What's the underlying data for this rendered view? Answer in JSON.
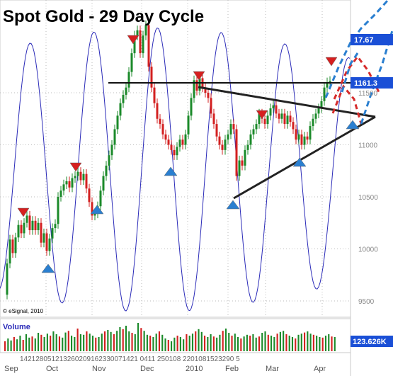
{
  "chart_data": {
    "type": "candlestick",
    "title": "Spot Gold - 29 Day Cycle",
    "source_note": "© eSignal, 2010",
    "price_axis": {
      "ticks": [
        "11500",
        "11000",
        "10500",
        "10000",
        "9500"
      ],
      "markers": [
        {
          "label": "17.67",
          "color": "#1a4fd6"
        },
        {
          "label": "1161.3",
          "color": "#1a4fd6"
        }
      ]
    },
    "x_axis": {
      "day_ticks": "1421 28 05 12 13 26 02 09 16 23 30 07 14 21 04 11 25 01 08 22 01 08 15 23 29 05",
      "day_ticks_display": "142128051213260209162330071421 0411 250108 2201081523290 5",
      "months": [
        "Sep",
        "Oct",
        "Nov",
        "Dec",
        "2010",
        "Feb",
        "Mar",
        "Apr"
      ]
    },
    "price_path": [
      [
        0,
        9560
      ],
      [
        4,
        9860
      ],
      [
        8,
        10090
      ],
      [
        12,
        9960
      ],
      [
        16,
        10110
      ],
      [
        20,
        10230
      ],
      [
        24,
        10150
      ],
      [
        28,
        10250
      ],
      [
        32,
        10320
      ],
      [
        36,
        10180
      ],
      [
        40,
        10270
      ],
      [
        44,
        10180
      ],
      [
        48,
        10250
      ],
      [
        52,
        10060
      ],
      [
        56,
        10150
      ],
      [
        60,
        9980
      ],
      [
        64,
        10100
      ],
      [
        68,
        10200
      ],
      [
        72,
        10240
      ],
      [
        76,
        10500
      ],
      [
        80,
        10560
      ],
      [
        84,
        10620
      ],
      [
        88,
        10650
      ],
      [
        92,
        10590
      ],
      [
        96,
        10680
      ],
      [
        100,
        10700
      ],
      [
        104,
        10740
      ],
      [
        108,
        10660
      ],
      [
        112,
        10720
      ],
      [
        116,
        10580
      ],
      [
        120,
        10450
      ],
      [
        124,
        10320
      ],
      [
        128,
        10340
      ],
      [
        132,
        10410
      ],
      [
        136,
        10560
      ],
      [
        140,
        10700
      ],
      [
        144,
        10800
      ],
      [
        148,
        10900
      ],
      [
        152,
        11000
      ],
      [
        156,
        11150
      ],
      [
        160,
        11280
      ],
      [
        164,
        11400
      ],
      [
        168,
        11480
      ],
      [
        172,
        11550
      ],
      [
        176,
        11700
      ],
      [
        180,
        11880
      ],
      [
        184,
        12050
      ],
      [
        188,
        12100
      ],
      [
        192,
        11880
      ],
      [
        196,
        12050
      ],
      [
        200,
        12150
      ],
      [
        204,
        11750
      ],
      [
        208,
        11550
      ],
      [
        212,
        11400
      ],
      [
        216,
        11250
      ],
      [
        220,
        11200
      ],
      [
        224,
        11100
      ],
      [
        228,
        11050
      ],
      [
        232,
        11000
      ],
      [
        236,
        10950
      ],
      [
        240,
        10900
      ],
      [
        244,
        10980
      ],
      [
        248,
        11050
      ],
      [
        252,
        11000
      ],
      [
        256,
        11100
      ],
      [
        260,
        11280
      ],
      [
        264,
        11450
      ],
      [
        268,
        11620
      ],
      [
        272,
        11520
      ],
      [
        276,
        11640
      ],
      [
        280,
        11550
      ],
      [
        284,
        11500
      ],
      [
        288,
        11450
      ],
      [
        292,
        11300
      ],
      [
        296,
        11200
      ],
      [
        300,
        11080
      ],
      [
        304,
        11000
      ],
      [
        308,
        10950
      ],
      [
        312,
        11050
      ],
      [
        316,
        11100
      ],
      [
        320,
        11200
      ],
      [
        324,
        11150
      ],
      [
        328,
        10700
      ],
      [
        332,
        10850
      ],
      [
        336,
        10800
      ],
      [
        340,
        10950
      ],
      [
        344,
        11000
      ],
      [
        348,
        11100
      ],
      [
        352,
        11150
      ],
      [
        356,
        11200
      ],
      [
        360,
        11300
      ],
      [
        364,
        11250
      ],
      [
        368,
        11200
      ],
      [
        372,
        11280
      ],
      [
        376,
        11350
      ],
      [
        380,
        11380
      ],
      [
        384,
        11300
      ],
      [
        388,
        11250
      ],
      [
        392,
        11300
      ],
      [
        396,
        11200
      ],
      [
        400,
        11280
      ],
      [
        404,
        11220
      ],
      [
        408,
        11150
      ],
      [
        412,
        11050
      ],
      [
        416,
        11100
      ],
      [
        420,
        11000
      ],
      [
        424,
        11080
      ],
      [
        428,
        11050
      ],
      [
        432,
        11180
      ],
      [
        436,
        11250
      ],
      [
        440,
        11300
      ],
      [
        444,
        11350
      ],
      [
        448,
        11420
      ],
      [
        452,
        11550
      ],
      [
        456,
        11600
      ],
      [
        460,
        11613
      ]
    ],
    "volume_label": "Volume",
    "volume_value": "123.626K",
    "volume": [
      0.35,
      0.45,
      0.38,
      0.5,
      0.42,
      0.55,
      0.4,
      0.6,
      0.48,
      0.52,
      0.45,
      0.65,
      0.58,
      0.5,
      0.62,
      0.55,
      0.7,
      0.6,
      0.52,
      0.48,
      0.66,
      0.72,
      0.55,
      0.5,
      0.8,
      0.6,
      0.58,
      0.7,
      0.62,
      0.55,
      0.48,
      0.5,
      0.62,
      0.7,
      0.75,
      0.68,
      0.6,
      0.72,
      0.85,
      0.78,
      0.9,
      0.7,
      0.65,
      0.6,
      1.0,
      0.82,
      0.72,
      0.58,
      0.55,
      0.5,
      0.62,
      0.7,
      0.58,
      0.45,
      0.4,
      0.35,
      0.48,
      0.55,
      0.5,
      0.42,
      0.6,
      0.55,
      0.62,
      0.7,
      0.78,
      0.68,
      0.55,
      0.5,
      0.6,
      0.52,
      0.48,
      0.58,
      0.72,
      0.8,
      0.65,
      0.55,
      0.62,
      0.5,
      0.45,
      0.52,
      0.58,
      0.55,
      0.6,
      0.48,
      0.52,
      0.65,
      0.7,
      0.58,
      0.55,
      0.5,
      0.62,
      0.68,
      0.72,
      0.6,
      0.55,
      0.5,
      0.45,
      0.58,
      0.62,
      0.66,
      0.7,
      0.62,
      0.58,
      0.55,
      0.5,
      0.48,
      0.55,
      0.6,
      0.52,
      0.5
    ]
  }
}
